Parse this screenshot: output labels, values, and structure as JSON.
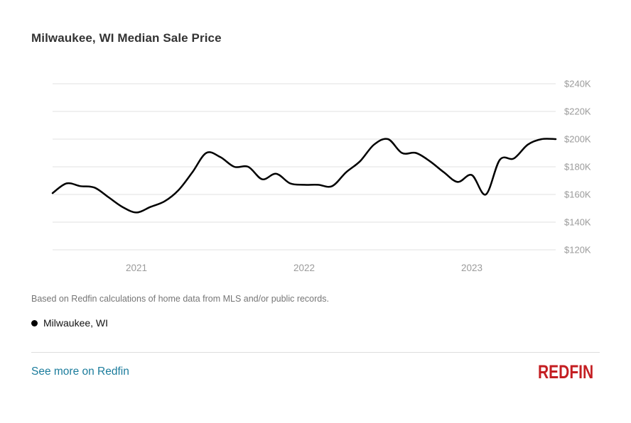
{
  "header": {
    "title": "Milwaukee, WI Median Sale Price"
  },
  "chart_data": {
    "type": "line",
    "title": "Milwaukee, WI Median Sale Price",
    "unit": "USD (thousands)",
    "grid": "horizontal",
    "legend_position": "bottom-left",
    "ylim": [
      120,
      240
    ],
    "y_ticks": [
      {
        "label": "$240K",
        "value": 240
      },
      {
        "label": "$220K",
        "value": 220
      },
      {
        "label": "$200K",
        "value": 200
      },
      {
        "label": "$180K",
        "value": 180
      },
      {
        "label": "$160K",
        "value": 160
      },
      {
        "label": "$140K",
        "value": 140
      },
      {
        "label": "$120K",
        "value": 120
      }
    ],
    "x_year_ticks": [
      {
        "label": "2021",
        "month_index": 6
      },
      {
        "label": "2022",
        "month_index": 18
      },
      {
        "label": "2023",
        "month_index": 30
      }
    ],
    "categories": [
      "2020-07",
      "2020-08",
      "2020-09",
      "2020-10",
      "2020-11",
      "2020-12",
      "2021-01",
      "2021-02",
      "2021-03",
      "2021-04",
      "2021-05",
      "2021-06",
      "2021-07",
      "2021-08",
      "2021-09",
      "2021-10",
      "2021-11",
      "2021-12",
      "2022-01",
      "2022-02",
      "2022-03",
      "2022-04",
      "2022-05",
      "2022-06",
      "2022-07",
      "2022-08",
      "2022-09",
      "2022-10",
      "2022-11",
      "2022-12",
      "2023-01",
      "2023-02",
      "2023-03",
      "2023-04",
      "2023-05",
      "2023-06",
      "2023-07"
    ],
    "series": [
      {
        "name": "Milwaukee, WI",
        "color": "#000000",
        "values_usd_thousands": [
          161,
          168,
          166,
          165,
          158,
          151,
          147,
          151,
          155,
          163,
          176,
          190,
          187,
          180,
          180,
          171,
          175,
          168,
          167,
          167,
          166,
          176,
          184,
          196,
          200,
          190,
          190,
          184,
          176,
          169,
          174,
          160,
          185,
          186,
          196,
          200,
          200
        ]
      }
    ]
  },
  "footer": {
    "caption": "Based on Redfin calculations of home data from MLS and/or public records.",
    "legend": {
      "marker": "circle",
      "marker_color": "#000000",
      "label": "Milwaukee, WI"
    },
    "link_label": "See more on Redfin",
    "logo_text": "REDFIN"
  },
  "colors": {
    "line": "#000000",
    "gridline": "#ececec",
    "tick_label": "#9b9b9b",
    "title": "#333333",
    "caption": "#767676",
    "link": "#1b7c9c",
    "logo_red": "#c41e22"
  }
}
